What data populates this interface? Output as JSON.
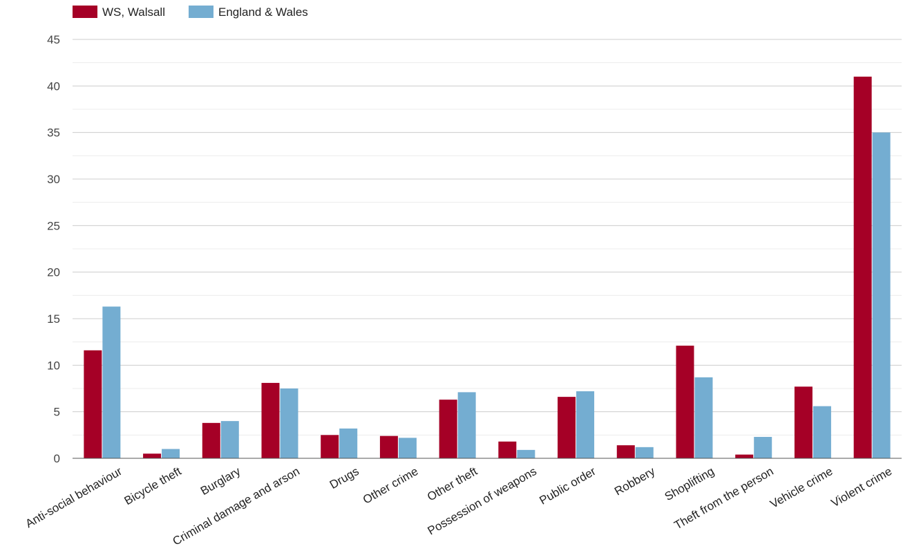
{
  "chart_data": {
    "type": "bar",
    "title": "",
    "xlabel": "",
    "ylabel": "",
    "ylim": [
      0,
      45
    ],
    "yticks": [
      0,
      5,
      10,
      15,
      20,
      25,
      30,
      35,
      40,
      45
    ],
    "grid": true,
    "legend_position": "top-left",
    "categories": [
      "Anti-social behaviour",
      "Bicycle theft",
      "Burglary",
      "Criminal damage and arson",
      "Drugs",
      "Other crime",
      "Other theft",
      "Possession of weapons",
      "Public order",
      "Robbery",
      "Shoplifting",
      "Theft from the person",
      "Vehicle crime",
      "Violent crime"
    ],
    "series": [
      {
        "name": "WS, Walsall",
        "color": "#a50026",
        "values": [
          11.6,
          0.5,
          3.8,
          8.1,
          2.5,
          2.4,
          6.3,
          1.8,
          6.6,
          1.4,
          12.1,
          0.4,
          7.7,
          41.0
        ]
      },
      {
        "name": "England & Wales",
        "color": "#74add1",
        "values": [
          16.3,
          1.0,
          4.0,
          7.5,
          3.2,
          2.2,
          7.1,
          0.9,
          7.2,
          1.2,
          8.7,
          2.3,
          5.6,
          35.0
        ]
      }
    ]
  }
}
